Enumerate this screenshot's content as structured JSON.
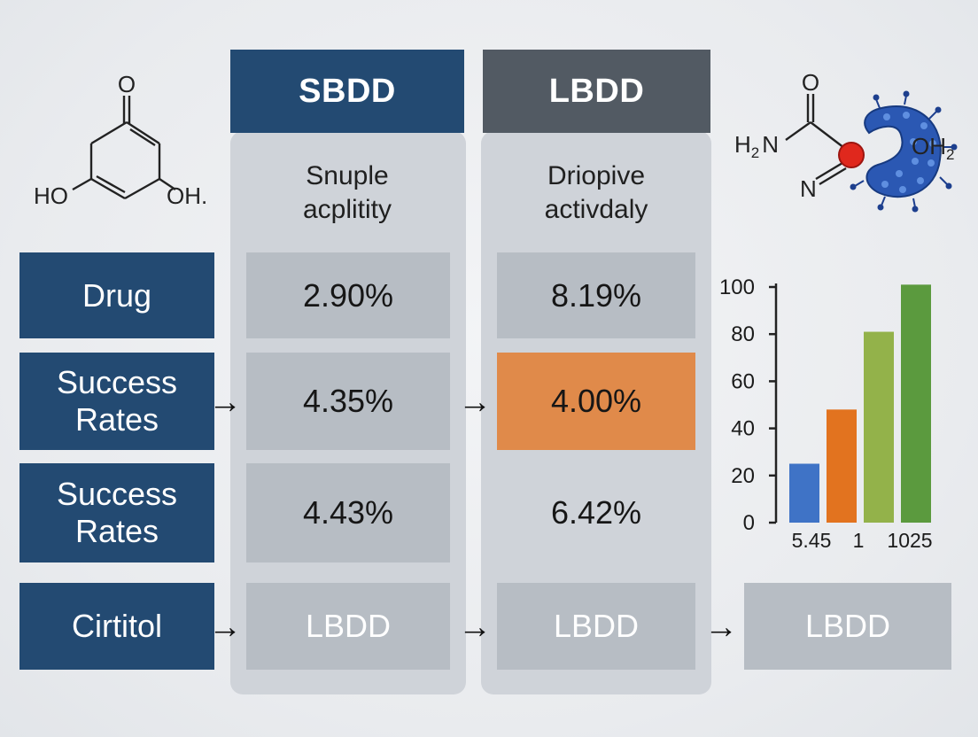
{
  "columns": {
    "sbdd": {
      "header": "SBDD",
      "subtitle_line1": "Snuple",
      "subtitle_line2": "acplitity"
    },
    "lbdd": {
      "header": "LBDD",
      "subtitle_line1": "Driopive",
      "subtitle_line2": "activdaly"
    }
  },
  "rows": [
    {
      "label_line1": "Drug",
      "label_line2": "",
      "sbdd": "2.90%",
      "lbdd": "8.19%"
    },
    {
      "label_line1": "Success",
      "label_line2": "Rates",
      "sbdd": "4.35%",
      "lbdd": "4.00%"
    },
    {
      "label_line1": "Success",
      "label_line2": "Rates",
      "sbdd": "4.43%",
      "lbdd": "6.42%"
    },
    {
      "label_line1": "Cirtitol",
      "label_line2": "",
      "sbdd": "LBDD",
      "lbdd": "LBDD",
      "extra": "LBDD"
    }
  ],
  "arrow_glyph": "→",
  "molecule_left": {
    "top_atom": "O",
    "left_group": "HO",
    "right_group": "OH."
  },
  "molecule_right": {
    "top_atom": "O",
    "amine": "H2N",
    "amine_main": "H",
    "amine_sub": "2",
    "amine_tail": "N",
    "imine": "N",
    "water_main": "OH",
    "water_sub": "2"
  },
  "colors": {
    "navy": "#234a72",
    "slate": "#525a63",
    "cell": "#b7bdc4",
    "highlight": "#e08a4a"
  },
  "chart_data": {
    "type": "bar",
    "y_ticks": [
      "100",
      "80",
      "60",
      "40",
      "20",
      "0"
    ],
    "ylim": [
      0,
      100
    ],
    "x_tick_labels": [
      "5.45",
      "1",
      "1025"
    ],
    "bars": [
      {
        "value": 25,
        "color": "#3f73c6"
      },
      {
        "value": 48,
        "color": "#e2731f"
      },
      {
        "value": 81,
        "color": "#93b24a"
      },
      {
        "value": 101,
        "color": "#5b9a3e"
      }
    ]
  }
}
